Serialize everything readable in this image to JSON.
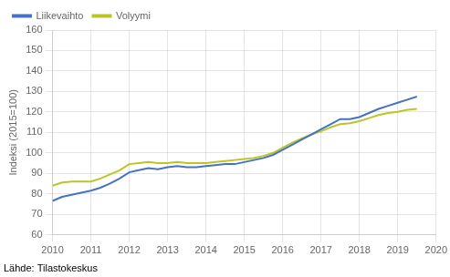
{
  "chart_data": {
    "type": "line",
    "y_label": "Indeksi (2015=100)",
    "annotations": [
      "Lähde: Tilastokeskus"
    ],
    "x": [
      2010.0,
      2010.25,
      2010.5,
      2010.75,
      2011.0,
      2011.25,
      2011.5,
      2011.75,
      2012.0,
      2012.25,
      2012.5,
      2012.75,
      2013.0,
      2013.25,
      2013.5,
      2013.75,
      2014.0,
      2014.25,
      2014.5,
      2014.75,
      2015.0,
      2015.25,
      2015.5,
      2015.75,
      2016.0,
      2016.25,
      2016.5,
      2016.75,
      2017.0,
      2017.25,
      2017.5,
      2017.75,
      2018.0,
      2018.25,
      2018.5,
      2018.75,
      2019.0,
      2019.25,
      2019.5
    ],
    "series": [
      {
        "name": "Liikevaihto",
        "color": "#4472c4",
        "values": [
          76.5,
          78.5,
          79.5,
          80.5,
          81.5,
          83.0,
          85.0,
          87.5,
          90.5,
          91.5,
          92.5,
          92.0,
          93.0,
          93.5,
          93.0,
          93.0,
          93.5,
          94.0,
          94.5,
          94.5,
          95.5,
          96.5,
          97.5,
          99.0,
          101.5,
          104.0,
          106.5,
          109.0,
          111.5,
          114.0,
          116.5,
          116.5,
          117.5,
          119.5,
          121.5,
          123.0,
          124.5,
          126.0,
          127.5
        ]
      },
      {
        "name": "Volyymi",
        "color": "#bac623",
        "values": [
          84.0,
          85.5,
          86.0,
          86.0,
          86.0,
          87.5,
          89.5,
          91.5,
          94.5,
          95.0,
          95.5,
          95.0,
          95.0,
          95.5,
          95.0,
          95.0,
          95.0,
          95.5,
          96.0,
          96.5,
          97.0,
          97.5,
          98.5,
          100.0,
          102.5,
          105.0,
          107.0,
          109.0,
          110.5,
          112.5,
          114.0,
          114.5,
          115.5,
          117.0,
          118.5,
          119.5,
          120.0,
          121.0,
          121.5
        ]
      }
    ],
    "xlim": [
      2010,
      2020
    ],
    "xticks": [
      2010,
      2011,
      2012,
      2013,
      2014,
      2015,
      2016,
      2017,
      2018,
      2019,
      2020
    ],
    "ylim": [
      60,
      160
    ],
    "yticks": [
      60,
      70,
      80,
      90,
      100,
      110,
      120,
      130,
      140,
      150,
      160
    ],
    "grid": true,
    "legend": "upper left"
  }
}
